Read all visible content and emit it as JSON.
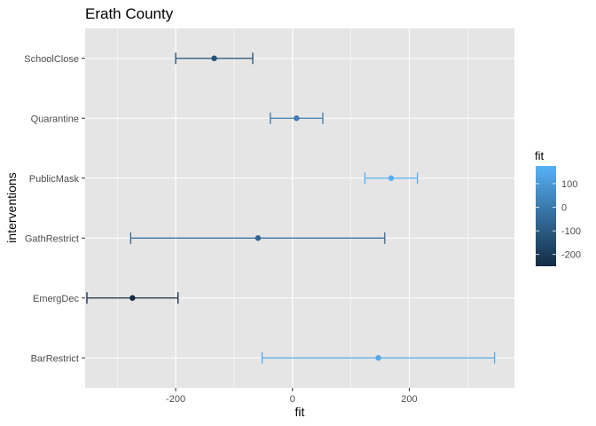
{
  "chart_data": {
    "type": "scatter",
    "subtype": "point-with-errorbars",
    "title": "Erath County",
    "xlabel": "fit",
    "ylabel": "interventions",
    "xlim": [
      -355,
      380
    ],
    "x_ticks": [
      -200,
      0,
      200
    ],
    "x_tick_labels": [
      "-200",
      "0",
      "200"
    ],
    "grid": true,
    "categories": [
      "BarRestrict",
      "EmergDec",
      "GathRestrict",
      "PublicMask",
      "Quarantine",
      "SchoolClose"
    ],
    "points": [
      {
        "label": "BarRestrict",
        "fit": 147,
        "lower": -52,
        "upper": 346
      },
      {
        "label": "EmergDec",
        "fit": -274,
        "lower": -352,
        "upper": -196
      },
      {
        "label": "GathRestrict",
        "fit": -59,
        "lower": -277,
        "upper": 158
      },
      {
        "label": "PublicMask",
        "fit": 169,
        "lower": 124,
        "upper": 214
      },
      {
        "label": "Quarantine",
        "fit": 7,
        "lower": -38,
        "upper": 52
      },
      {
        "label": "SchoolClose",
        "fit": -134,
        "lower": -200,
        "upper": -68
      }
    ],
    "legend": {
      "title": "fit",
      "placement": "right",
      "range": [
        -250,
        175
      ],
      "ticks": [
        100,
        0,
        -100,
        -200
      ],
      "tick_labels": [
        "100",
        "0",
        "-100",
        "-200"
      ],
      "low_color": "#132B43",
      "high_color": "#56B1F7"
    },
    "panel_color": "#e5e5e5",
    "grid_color": "#ffffff"
  }
}
